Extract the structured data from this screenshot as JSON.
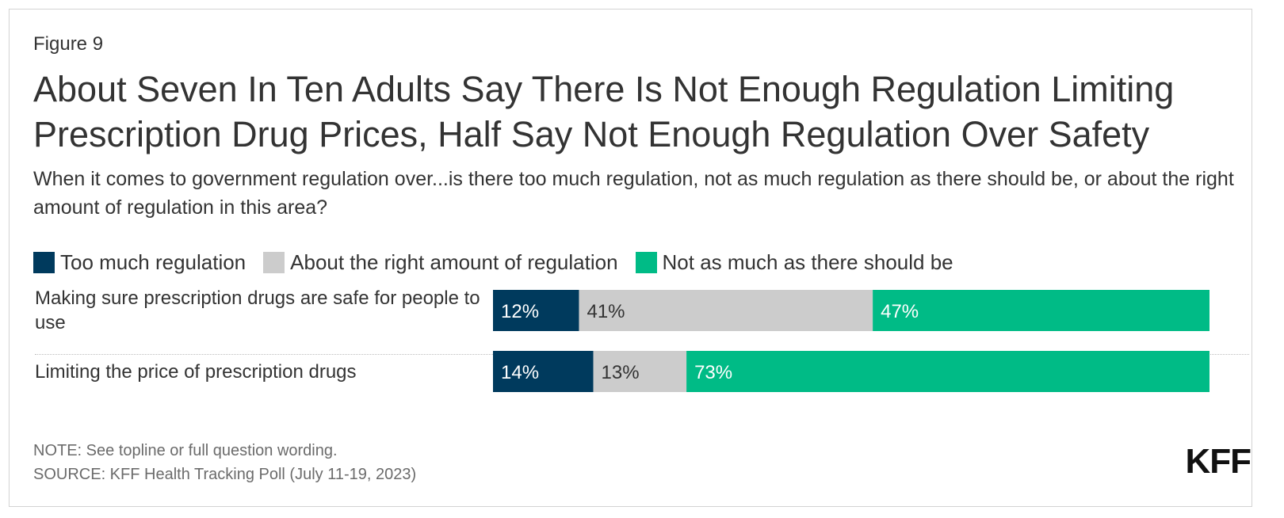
{
  "figure_label": "Figure 9",
  "title_line1": "About Seven In Ten Adults Say There Is Not Enough Regulation Limiting",
  "title_line2": "Prescription Drug Prices, Half Say Not Enough Regulation Over Safety",
  "subtitle": "When it comes to government regulation over...is there too much regulation, not as much regulation as there should be, or about the right amount of regulation in this area?",
  "colors": {
    "too_much": "#003a5d",
    "about_right": "#cccccc",
    "not_enough": "#00bb86",
    "label_light": "#ffffff",
    "label_dark": "#333333"
  },
  "chart_data": {
    "type": "bar",
    "orientation": "horizontal",
    "stacked": true,
    "title": "About Seven In Ten Adults Say There Is Not Enough Regulation Limiting Prescription Drug Prices, Half Say Not Enough Regulation Over Safety",
    "categories": [
      "Making sure prescription drugs are safe for people to use",
      "Limiting the price of prescription drugs"
    ],
    "series": [
      {
        "name": "Too much regulation",
        "values": [
          12,
          14
        ],
        "labels": [
          "12%",
          "14%"
        ]
      },
      {
        "name": "About the right amount of regulation",
        "values": [
          41,
          13
        ],
        "labels": [
          "41%",
          "13%"
        ]
      },
      {
        "name": "Not as much as there should be",
        "values": [
          47,
          73
        ],
        "labels": [
          "47%",
          "73%"
        ]
      }
    ],
    "xlim": [
      0,
      100
    ],
    "legend_position": "top-left"
  },
  "notes": {
    "note": "NOTE: See topline or full question wording.",
    "source": "SOURCE: KFF Health Tracking Poll (July 11-19, 2023)"
  },
  "logo_text": "KFF"
}
